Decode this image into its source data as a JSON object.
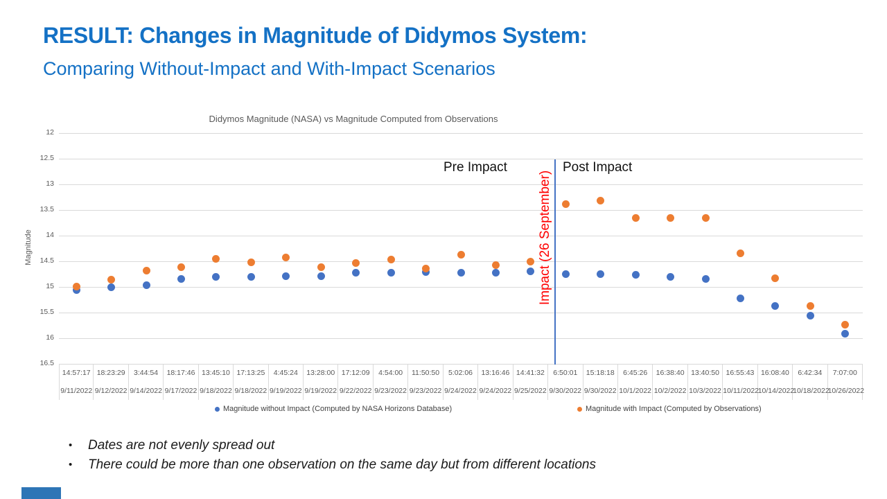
{
  "slide": {
    "title": "RESULT: Changes in Magnitude of Didymos System:",
    "subtitle": "Comparing Without-Impact and With-Impact Scenarios",
    "title_color": "#1471C5",
    "accent_color": "#2E75B6",
    "bullets": [
      "Dates are not evenly spread out",
      "There could be more than one observation on the same day but from different locations"
    ]
  },
  "chart_data": {
    "type": "scatter",
    "title": "Didymos Magnitude (NASA) vs Magnitude Computed from Observations",
    "xlabel": "",
    "ylabel": "Magnitude",
    "grid": true,
    "legend_position": "bottom",
    "y_axis": {
      "min": 12,
      "max": 16.5,
      "inverted_downward": true,
      "ticks": [
        "12",
        "12.5",
        "13",
        "13.5",
        "14",
        "14.5",
        "15",
        "15.5",
        "16",
        "16.5"
      ]
    },
    "categories": [
      {
        "time": "14:57:17",
        "date": "9/11/2022"
      },
      {
        "time": "18:23:29",
        "date": "9/12/2022"
      },
      {
        "time": "3:44:54",
        "date": "9/14/2022"
      },
      {
        "time": "18:17:46",
        "date": "9/17/2022"
      },
      {
        "time": "13:45:10",
        "date": "9/18/2022"
      },
      {
        "time": "17:13:25",
        "date": "9/18/2022"
      },
      {
        "time": "4:45:24",
        "date": "9/19/2022"
      },
      {
        "time": "13:28:00",
        "date": "9/19/2022"
      },
      {
        "time": "17:12:09",
        "date": "9/22/2022"
      },
      {
        "time": "4:54:00",
        "date": "9/23/2022"
      },
      {
        "time": "11:50:50",
        "date": "9/23/2022"
      },
      {
        "time": "5:02:06",
        "date": "9/24/2022"
      },
      {
        "time": "13:16:46",
        "date": "9/24/2022"
      },
      {
        "time": "14:41:32",
        "date": "9/25/2022"
      },
      {
        "time": "6:50:01",
        "date": "9/30/2022"
      },
      {
        "time": "15:18:18",
        "date": "9/30/2022"
      },
      {
        "time": "6:45:26",
        "date": "10/1/2022"
      },
      {
        "time": "16:38:40",
        "date": "10/2/2022"
      },
      {
        "time": "13:40:50",
        "date": "10/3/2022"
      },
      {
        "time": "16:55:43",
        "date": "10/11/2022"
      },
      {
        "time": "16:08:40",
        "date": "10/14/2022"
      },
      {
        "time": "6:42:34",
        "date": "10/18/2022"
      },
      {
        "time": "7:07:00",
        "date": "10/26/2022"
      }
    ],
    "series": [
      {
        "name": "Magnitude without Impact (Computed by NASA Horizons Database)",
        "color": "#4472C4",
        "values": [
          15.06,
          15.01,
          14.96,
          14.84,
          14.8,
          14.8,
          14.79,
          14.79,
          14.72,
          14.72,
          14.71,
          14.72,
          14.72,
          14.7,
          14.75,
          14.75,
          14.77,
          14.8,
          14.84,
          15.22,
          15.37,
          15.56,
          15.91
        ]
      },
      {
        "name": "Magnitude with Impact (Computed by Observations)",
        "color": "#ED7D31",
        "values": [
          14.99,
          14.86,
          14.68,
          14.61,
          14.45,
          14.52,
          14.42,
          14.61,
          14.54,
          14.46,
          14.64,
          14.37,
          14.57,
          14.5,
          13.38,
          13.32,
          13.65,
          13.66,
          13.66,
          14.34,
          14.83,
          15.37,
          15.73
        ]
      }
    ],
    "annotations": {
      "pre_impact_label": "Pre Impact",
      "post_impact_label": "Post Impact",
      "impact_line_label": "Impact (26 September)",
      "impact_line_color": "#4472C4",
      "impact_label_color": "#FF0000",
      "impact_between_dates": [
        "9/25/2022",
        "9/30/2022"
      ]
    }
  }
}
